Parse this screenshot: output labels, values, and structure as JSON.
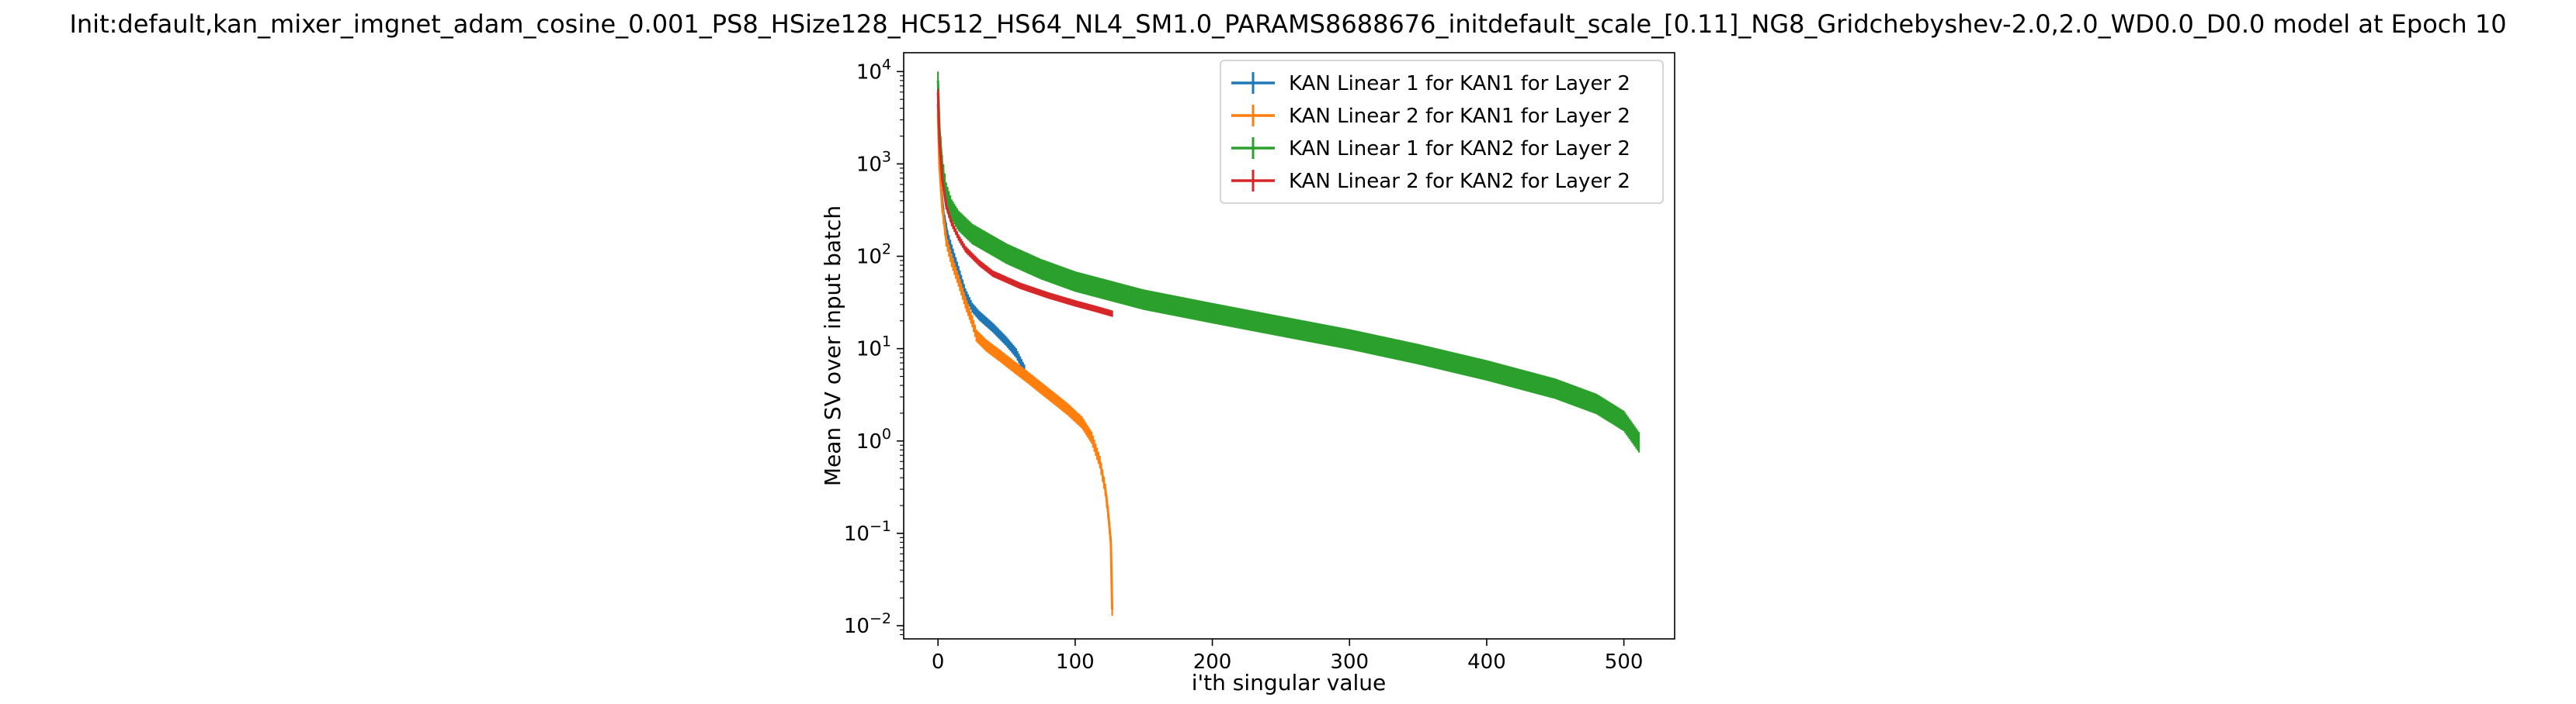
{
  "chart_data": {
    "type": "line",
    "title": "Init:default,kan_mixer_imgnet_adam_cosine_0.001_PS8_HSize128_HC512_HS64_NL4_SM1.0_PARAMS8688676_initdefault_scale_[0.11]_NG8_Gridchebyshev-2.0,2.0_WD0.0_D0.0 model at Epoch 10",
    "xlabel": "i'th singular value",
    "ylabel": "Mean SV over input batch",
    "xlim": [
      -25,
      537
    ],
    "ylim": [
      0.0072,
      16000
    ],
    "yscale": "log",
    "x_ticks": [
      0,
      100,
      200,
      300,
      400,
      500
    ],
    "x_tick_labels": [
      "0",
      "100",
      "200",
      "300",
      "400",
      "500"
    ],
    "y_ticks": [
      0.01,
      0.1,
      1,
      10,
      100,
      1000,
      10000
    ],
    "y_tick_labels": [
      {
        "base": "10",
        "exp": "−2"
      },
      {
        "base": "10",
        "exp": "−1"
      },
      {
        "base": "10",
        "exp": "0"
      },
      {
        "base": "10",
        "exp": "1"
      },
      {
        "base": "10",
        "exp": "2"
      },
      {
        "base": "10",
        "exp": "3"
      },
      {
        "base": "10",
        "exp": "4"
      }
    ],
    "grid": false,
    "legend": "top-right",
    "series": [
      {
        "name": "KAN Linear 1 for KAN1 for Layer 2",
        "color": "#1f77b4",
        "points": [
          [
            0,
            4500
          ],
          [
            1,
            1200
          ],
          [
            2,
            600
          ],
          [
            4,
            300
          ],
          [
            7,
            170
          ],
          [
            10,
            120
          ],
          [
            15,
            70
          ],
          [
            20,
            40
          ],
          [
            25,
            28
          ],
          [
            30,
            23
          ],
          [
            40,
            17
          ],
          [
            50,
            12
          ],
          [
            57,
            9
          ],
          [
            63,
            6
          ]
        ],
        "error_frac": 0.12
      },
      {
        "name": "KAN Linear 2 for KAN1 for Layer 2",
        "color": "#ff7f0e",
        "points": [
          [
            0,
            3500
          ],
          [
            1,
            1000
          ],
          [
            3,
            350
          ],
          [
            6,
            150
          ],
          [
            10,
            90
          ],
          [
            15,
            55
          ],
          [
            20,
            32
          ],
          [
            25,
            20
          ],
          [
            28,
            14
          ],
          [
            35,
            11
          ],
          [
            45,
            8.5
          ],
          [
            55,
            6.5
          ],
          [
            65,
            5
          ],
          [
            75,
            3.8
          ],
          [
            85,
            2.9
          ],
          [
            95,
            2.2
          ],
          [
            105,
            1.6
          ],
          [
            112,
            1.1
          ],
          [
            118,
            0.6
          ],
          [
            122,
            0.3
          ],
          [
            124,
            0.17
          ],
          [
            126,
            0.08
          ],
          [
            127,
            0.015
          ]
        ],
        "error_frac": 0.15
      },
      {
        "name": "KAN Linear 1 for KAN2 for Layer 2",
        "color": "#2ca02c",
        "points": [
          [
            0,
            8000
          ],
          [
            1,
            2500
          ],
          [
            3,
            1000
          ],
          [
            6,
            500
          ],
          [
            10,
            330
          ],
          [
            15,
            250
          ],
          [
            25,
            180
          ],
          [
            50,
            110
          ],
          [
            75,
            75
          ],
          [
            100,
            55
          ],
          [
            150,
            35
          ],
          [
            200,
            25
          ],
          [
            250,
            18
          ],
          [
            300,
            13
          ],
          [
            350,
            9
          ],
          [
            400,
            6
          ],
          [
            450,
            3.8
          ],
          [
            480,
            2.6
          ],
          [
            500,
            1.7
          ],
          [
            511,
            1
          ]
        ],
        "error_frac": 0.25
      },
      {
        "name": "KAN Linear 2 for KAN2 for Layer 2",
        "color": "#d62728",
        "points": [
          [
            0,
            6000
          ],
          [
            1,
            1800
          ],
          [
            3,
            700
          ],
          [
            6,
            350
          ],
          [
            10,
            230
          ],
          [
            15,
            160
          ],
          [
            20,
            120
          ],
          [
            30,
            85
          ],
          [
            40,
            65
          ],
          [
            60,
            48
          ],
          [
            80,
            38
          ],
          [
            100,
            31
          ],
          [
            115,
            27
          ],
          [
            127,
            24
          ]
        ],
        "error_frac": 0.08
      }
    ]
  }
}
